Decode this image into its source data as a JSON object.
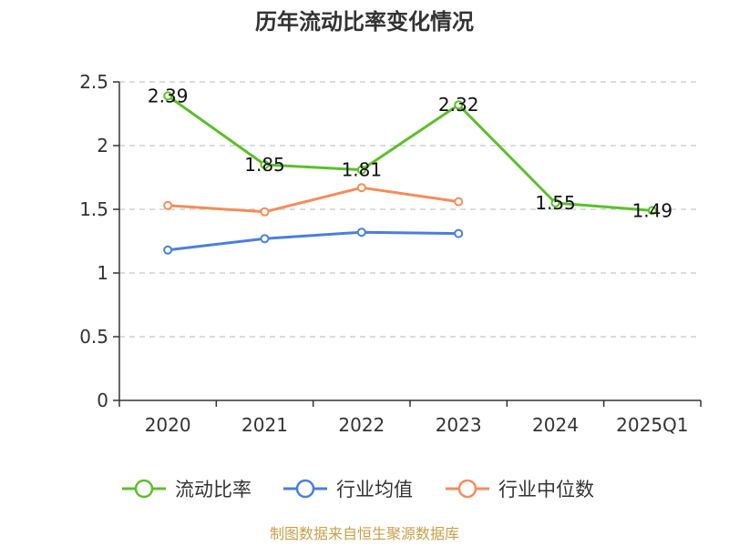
{
  "chart_data": {
    "type": "line",
    "title": "历年流动比率变化情况",
    "xlabel": "",
    "ylabel": "",
    "categories": [
      "2020",
      "2021",
      "2022",
      "2023",
      "2024",
      "2025Q1"
    ],
    "ylim": [
      0,
      2.5
    ],
    "yticks": [
      "0",
      "0.5",
      "1",
      "1.5",
      "2",
      "2.5"
    ],
    "ytick_values": [
      0,
      0.5,
      1,
      1.5,
      2,
      2.5
    ],
    "grid": true,
    "legend_position": "bottom",
    "series": [
      {
        "name": "流动比率",
        "color": "#5cbf2a",
        "values": [
          2.39,
          1.85,
          1.81,
          2.32,
          1.55,
          1.49
        ],
        "labels": [
          "2.39",
          "1.85",
          "1.81",
          "2.32",
          "1.55",
          "1.49"
        ],
        "show_labels": true
      },
      {
        "name": "行业均值",
        "color": "#4a7fdc",
        "values": [
          1.18,
          1.27,
          1.32,
          1.31,
          null,
          null
        ],
        "show_labels": false
      },
      {
        "name": "行业中位数",
        "color": "#f58c5a",
        "values": [
          1.53,
          1.48,
          1.67,
          1.56,
          null,
          null
        ],
        "show_labels": false
      }
    ],
    "source": "制图数据来自恒生聚源数据库"
  }
}
